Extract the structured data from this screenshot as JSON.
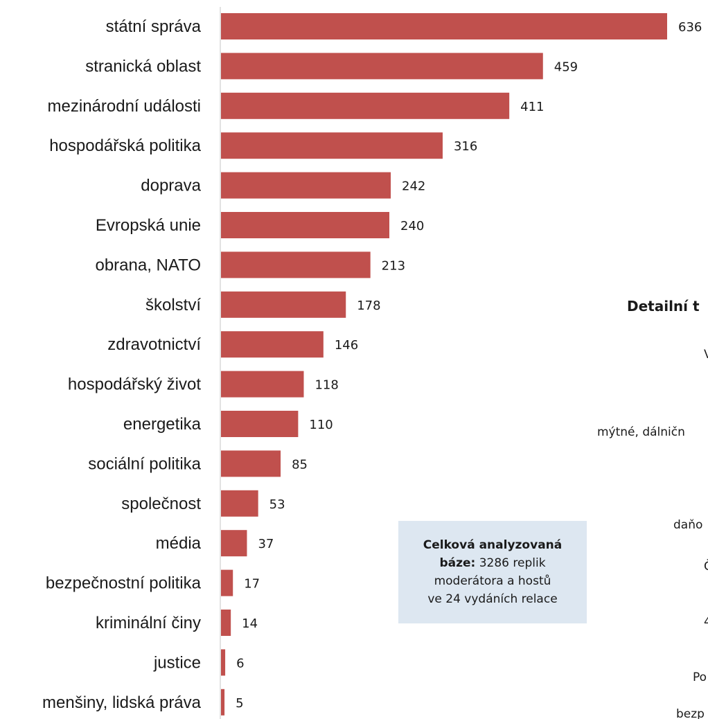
{
  "chart_data": {
    "type": "bar",
    "orientation": "horizontal",
    "bar_color": "#c0504d",
    "axis_color": "#d9d9d9",
    "categories": [
      "státní správa",
      "stranická oblast",
      "mezinárodní události",
      "hospodářská politika",
      "doprava",
      "Evropská unie",
      "obrana, NATO",
      "školství",
      "zdravotnictví",
      "hospodářský život",
      "energetika",
      "sociální politika",
      "společnost",
      "média",
      "bezpečnostní politika",
      "kriminální činy",
      "justice",
      "menšiny, lidská práva"
    ],
    "values": [
      636,
      459,
      411,
      316,
      242,
      240,
      213,
      178,
      146,
      118,
      110,
      85,
      53,
      37,
      17,
      14,
      6,
      5
    ],
    "data_labels": [
      "636",
      "459",
      "411",
      "316",
      "242",
      "240",
      "213",
      "178",
      "146",
      "118",
      "110",
      "85",
      "53",
      "37",
      "17",
      "14",
      "6",
      "5"
    ],
    "xlim": [
      0,
      636
    ],
    "grid": false,
    "legend": "none"
  },
  "note": {
    "line1_bold": "Celková analyzovaná",
    "line2_bold": "báze:",
    "line2_rest": " 3286 replik",
    "line3": "moderátora a hostů",
    "line4": "ve 24 vydáních relace",
    "background": "#dde7f1"
  },
  "side_panel": {
    "title": "Detailní t",
    "fragments": [
      "V",
      "mýtné, dálničn",
      "daňo",
      "Č",
      "4",
      "Po",
      "bezp"
    ]
  }
}
